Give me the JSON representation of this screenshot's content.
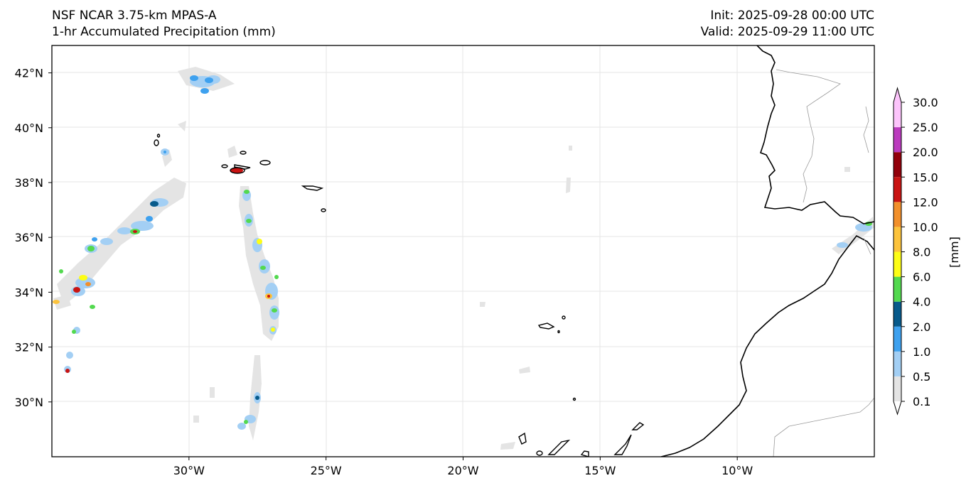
{
  "header": {
    "left_line1": "NSF NCAR 3.75-km MPAS-A",
    "left_line2": "1-hr Accumulated Precipitation (mm)",
    "right_line1": "Init: 2025-09-28 00:00 UTC",
    "right_line2": "Valid: 2025-09-29 11:00 UTC"
  },
  "map": {
    "lon_range": [
      -35,
      -5
    ],
    "lat_range": [
      28,
      43
    ],
    "lon_ticks": [
      "30°W",
      "25°W",
      "20°W",
      "15°W",
      "10°W"
    ],
    "lat_ticks": [
      "42°N",
      "40°N",
      "38°N",
      "36°N",
      "34°N",
      "32°N",
      "30°N"
    ],
    "colors": {
      "coast": "#000000",
      "border": "#9a9a9a",
      "grid": "#e6e6e6"
    }
  },
  "colorbar": {
    "label": "[mm]",
    "ticks": [
      "0.1",
      "0.5",
      "1.0",
      "2.0",
      "4.0",
      "6.0",
      "8.0",
      "10.0",
      "12.0",
      "15.0",
      "20.0",
      "25.0",
      "30.0"
    ],
    "colors": [
      "#e4e4e4",
      "#a3cff4",
      "#3ea1ef",
      "#075a8b",
      "#53d94f",
      "#fdfd16",
      "#fcc33c",
      "#f2902b",
      "#c91412",
      "#92000a",
      "#bb3bbe",
      "#fcc4fb"
    ],
    "under_color": "#ffffff",
    "over_color": "#fcc4fb"
  }
}
